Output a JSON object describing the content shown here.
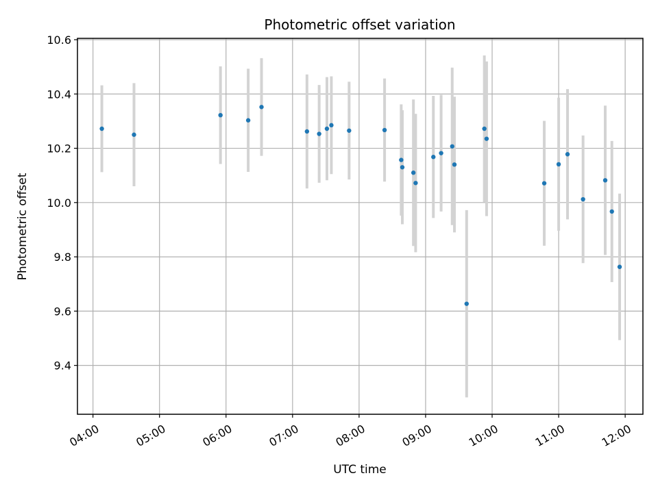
{
  "chart_data": {
    "type": "scatter",
    "title": "Photometric offset variation",
    "xlabel": "UTC time",
    "ylabel": "Photometric offset",
    "xlim": [
      "03:46",
      "12:16"
    ],
    "ylim": [
      9.22,
      10.605
    ],
    "grid": true,
    "x_ticks": [
      "04:00",
      "05:00",
      "06:00",
      "07:00",
      "08:00",
      "09:00",
      "10:00",
      "11:00",
      "12:00"
    ],
    "y_ticks": [
      "9.4",
      "9.6",
      "9.8",
      "10.0",
      "10.2",
      "10.4",
      "10.6"
    ],
    "marker_color": "#1f77b4",
    "errorbar_color": "#d3d3d3",
    "points": [
      {
        "x": "04:08",
        "y": 10.272,
        "err": 0.16
      },
      {
        "x": "04:37",
        "y": 10.25,
        "err": 0.19
      },
      {
        "x": "05:55",
        "y": 10.322,
        "err": 0.18
      },
      {
        "x": "06:20",
        "y": 10.303,
        "err": 0.19
      },
      {
        "x": "06:32",
        "y": 10.352,
        "err": 0.18
      },
      {
        "x": "07:13",
        "y": 10.262,
        "err": 0.21
      },
      {
        "x": "07:24",
        "y": 10.253,
        "err": 0.18
      },
      {
        "x": "07:31",
        "y": 10.272,
        "err": 0.19
      },
      {
        "x": "07:35",
        "y": 10.285,
        "err": 0.18
      },
      {
        "x": "07:51",
        "y": 10.265,
        "err": 0.18
      },
      {
        "x": "08:23",
        "y": 10.267,
        "err": 0.19
      },
      {
        "x": "08:38",
        "y": 10.157,
        "err": 0.205
      },
      {
        "x": "08:39",
        "y": 10.13,
        "err": 0.21
      },
      {
        "x": "08:49",
        "y": 10.11,
        "err": 0.27
      },
      {
        "x": "08:51",
        "y": 10.072,
        "err": 0.255
      },
      {
        "x": "09:07",
        "y": 10.168,
        "err": 0.225
      },
      {
        "x": "09:14",
        "y": 10.182,
        "err": 0.215
      },
      {
        "x": "09:24",
        "y": 10.207,
        "err": 0.29
      },
      {
        "x": "09:26",
        "y": 10.14,
        "err": 0.25
      },
      {
        "x": "09:37",
        "y": 9.627,
        "err": 0.345
      },
      {
        "x": "09:53",
        "y": 10.272,
        "err": 0.27
      },
      {
        "x": "09:55",
        "y": 10.235,
        "err": 0.285
      },
      {
        "x": "10:47",
        "y": 10.071,
        "err": 0.23
      },
      {
        "x": "11:00",
        "y": 10.141,
        "err": 0.245
      },
      {
        "x": "11:08",
        "y": 10.178,
        "err": 0.24
      },
      {
        "x": "11:22",
        "y": 10.012,
        "err": 0.235
      },
      {
        "x": "11:42",
        "y": 10.082,
        "err": 0.275
      },
      {
        "x": "11:48",
        "y": 9.967,
        "err": 0.26
      },
      {
        "x": "11:55",
        "y": 9.763,
        "err": 0.27
      }
    ]
  }
}
